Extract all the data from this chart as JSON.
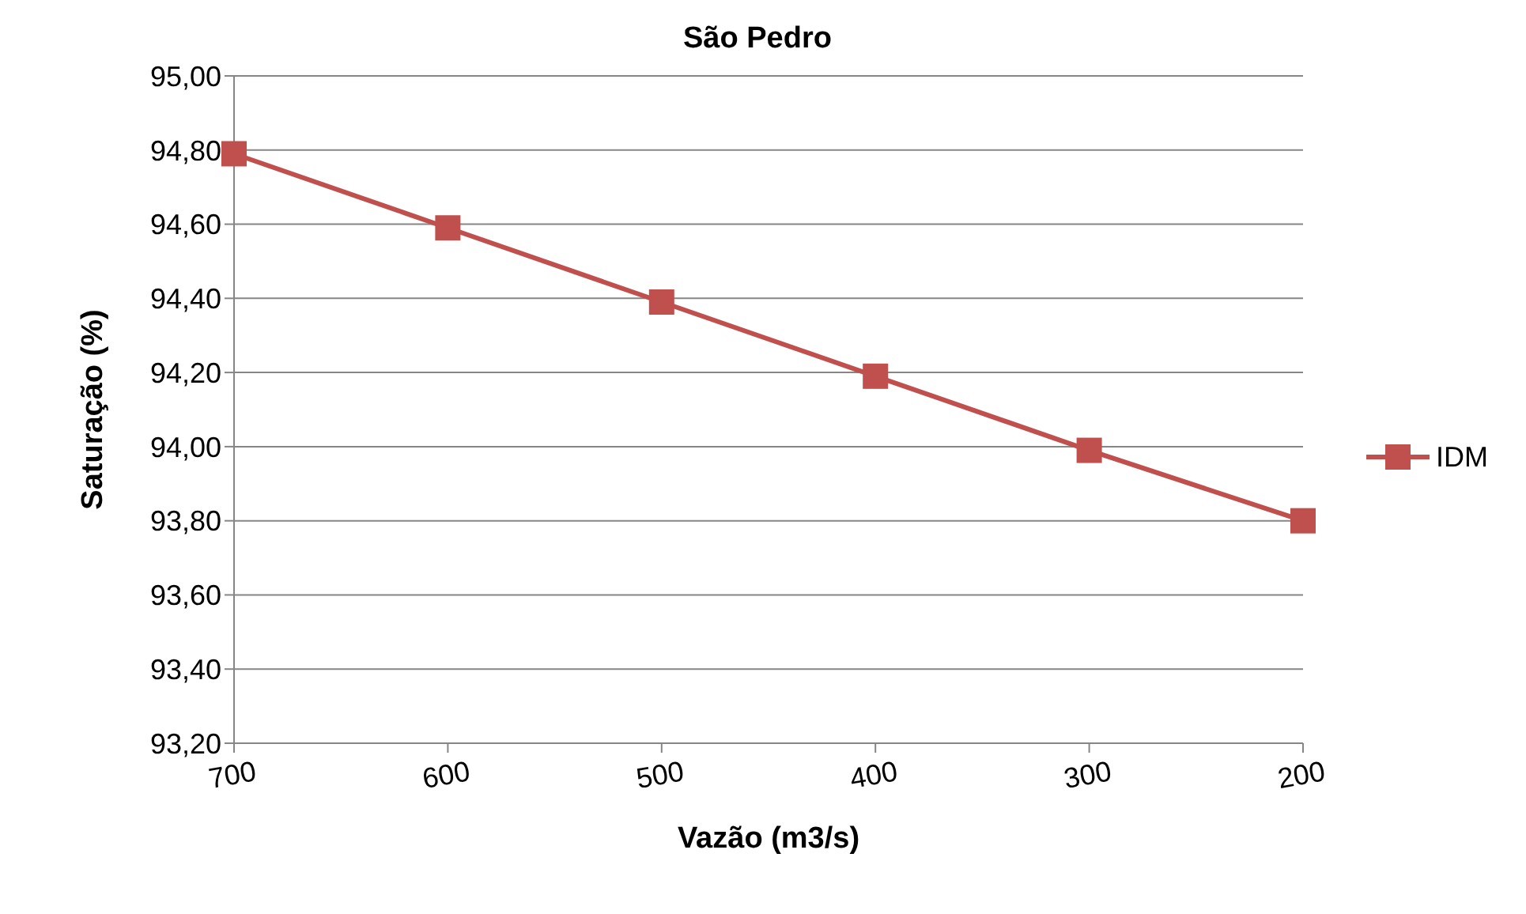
{
  "chart_data": {
    "type": "line",
    "title": "São Pedro",
    "xlabel": "Vazão (m3/s)",
    "ylabel": "Saturação (%)",
    "categories": [
      "700",
      "600",
      "500",
      "400",
      "300",
      "200"
    ],
    "series": [
      {
        "name": "IDM",
        "color": "#c0504d",
        "values": [
          94.79,
          94.59,
          94.39,
          94.19,
          93.99,
          93.8
        ]
      }
    ],
    "ylim": [
      93.2,
      95
    ],
    "yticks": [
      {
        "value": 93.2,
        "label": "93,20"
      },
      {
        "value": 93.4,
        "label": "93,40"
      },
      {
        "value": 93.6,
        "label": "93,60"
      },
      {
        "value": 93.8,
        "label": "93,80"
      },
      {
        "value": 94,
        "label": "94,00"
      },
      {
        "value": 94.2,
        "label": "94,20"
      },
      {
        "value": 94.4,
        "label": "94,40"
      },
      {
        "value": 94.6,
        "label": "94,60"
      },
      {
        "value": 94.8,
        "label": "94,80"
      },
      {
        "value": 95,
        "label": "95,00"
      }
    ],
    "grid": "y",
    "legend": "right",
    "marker": "square",
    "line_style": "solid"
  }
}
